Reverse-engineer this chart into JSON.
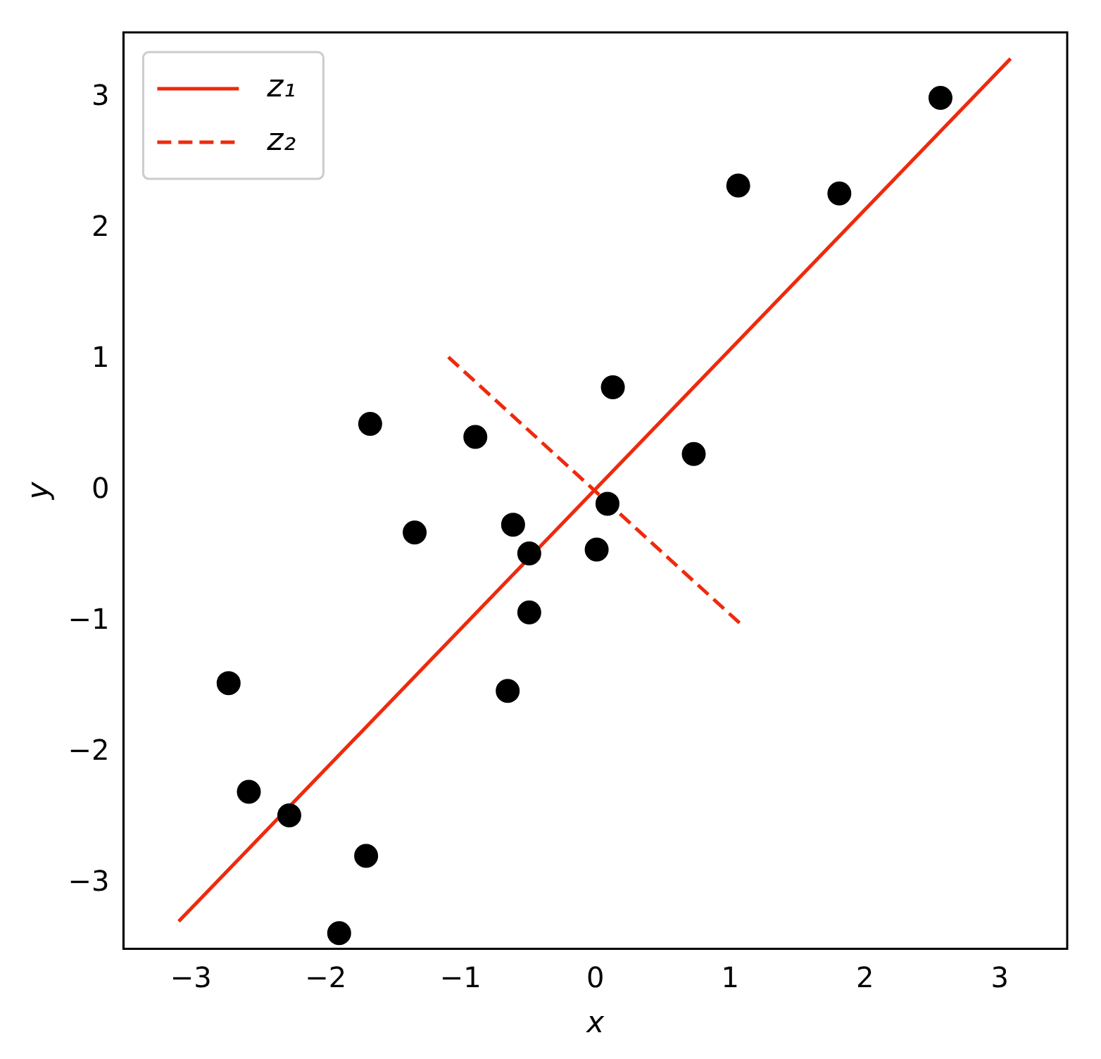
{
  "chart_data": {
    "type": "scatter",
    "xlabel": "x",
    "ylabel": "y",
    "xlim": [
      -3.5,
      3.5
    ],
    "ylim": [
      -3.5,
      3.5
    ],
    "xticks": [
      -3,
      -2,
      -1,
      0,
      1,
      2,
      3
    ],
    "yticks": [
      -3,
      -2,
      -1,
      0,
      1,
      2,
      3
    ],
    "grid": false,
    "legend": "top left",
    "marker": "circle",
    "series": [
      {
        "color": "#000000",
        "x": [
          2.56,
          1.06,
          1.81,
          0.13,
          -1.67,
          -0.89,
          0.73,
          0.09,
          -1.34,
          -0.61,
          -0.49,
          0.01,
          -0.49,
          -0.65,
          -2.72,
          -2.57,
          -2.27,
          -1.7,
          -1.9
        ],
        "values": [
          3.0,
          2.33,
          2.27,
          0.79,
          0.51,
          0.41,
          0.28,
          -0.1,
          -0.32,
          -0.26,
          -0.48,
          -0.45,
          -0.93,
          -1.53,
          -1.47,
          -2.3,
          -2.48,
          -2.79,
          -3.38
        ]
      },
      {
        "type": "line",
        "name": "z₁",
        "color": "#ee2a0c",
        "line_style": "solid",
        "marker": "none",
        "x": [
          -3.09,
          3.08
        ],
        "values": [
          -3.29,
          3.3
        ]
      },
      {
        "type": "line",
        "name": "z₂",
        "color": "#ee2a0c",
        "line_style": "dashed",
        "marker": "none",
        "x": [
          -1.09,
          1.09
        ],
        "values": [
          1.02,
          -1.03
        ]
      }
    ]
  }
}
